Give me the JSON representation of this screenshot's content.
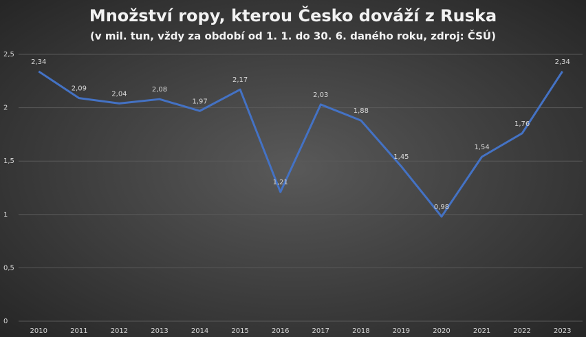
{
  "chart_data": {
    "type": "line",
    "title": "Množství ropy, kterou Česko dováží z Ruska",
    "subtitle": "(v mil. tun, vždy za období od 1. 1. do 30. 6. daného roku, zdroj: ČSÚ)",
    "categories": [
      "2010",
      "2011",
      "2012",
      "2013",
      "2014",
      "2015",
      "2016",
      "2017",
      "2018",
      "2019",
      "2020",
      "2021",
      "2022",
      "2023"
    ],
    "values": [
      2.34,
      2.09,
      2.04,
      2.08,
      1.97,
      2.17,
      1.21,
      2.03,
      1.88,
      1.45,
      0.98,
      1.54,
      1.76,
      2.34
    ],
    "value_labels": [
      "2,34",
      "2,09",
      "2,04",
      "2,08",
      "1,97",
      "2,17",
      "1,21",
      "2,03",
      "1,88",
      "1,45",
      "0,98",
      "1,54",
      "1,76",
      "2,34"
    ],
    "color": "#4472c4",
    "ylim": [
      0,
      2.5
    ],
    "yticks": [
      0,
      {
        "value": 0.5,
        "label": "0,5"
      },
      1,
      {
        "value": 1.5,
        "label": "1,5"
      },
      2,
      {
        "value": 2.5,
        "label": "2,5"
      }
    ],
    "grid": true
  }
}
